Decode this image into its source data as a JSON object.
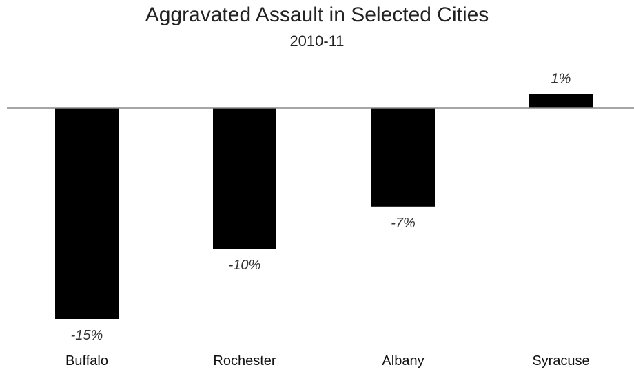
{
  "chart_data": {
    "type": "bar",
    "title": "Aggravated Assault in Selected Cities",
    "subtitle": "2010-11",
    "categories": [
      "Buffalo",
      "Rochester",
      "Albany",
      "Syracuse"
    ],
    "values": [
      -15,
      -10,
      -7,
      1
    ],
    "value_labels": [
      "-15%",
      "-10%",
      "-7%",
      "1%"
    ],
    "xlabel": "",
    "ylabel": "",
    "ylim": [
      -15,
      1
    ],
    "grid": false,
    "legend": "none",
    "bar_color": "#000000",
    "baseline_color": "#888888"
  }
}
